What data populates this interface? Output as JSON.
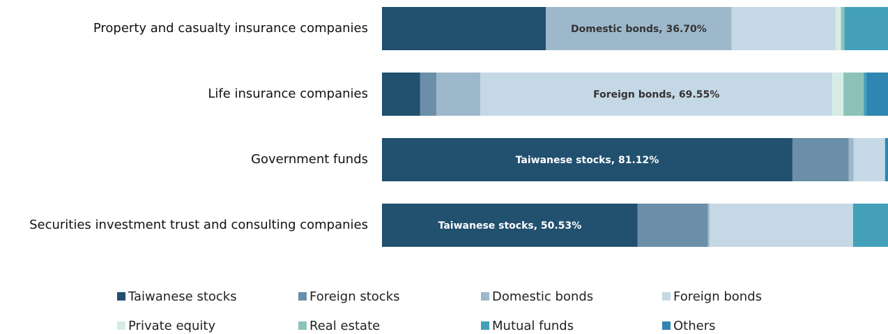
{
  "chart_data": {
    "type": "stacked-bar-horizontal",
    "categories": [
      "Property and casualty insurance companies",
      "Life insurance companies",
      "Government funds",
      "Securities investment trust and consulting companies"
    ],
    "xlim": [
      0,
      100
    ],
    "legend": "bottom",
    "series": [
      {
        "name": "Taiwanese stocks",
        "color": "#22506f",
        "values": [
          32.4,
          7.55,
          81.12,
          50.53
        ],
        "value_labels": [
          null,
          null,
          "Taiwanese stocks, 81.12%",
          "Taiwanese stocks, 50.53%"
        ]
      },
      {
        "name": "Foreign stocks",
        "color": "#6b8fa8",
        "values": [
          0,
          3.2,
          11.1,
          13.9
        ]
      },
      {
        "name": "Domestic bonds",
        "color": "#9db8cb",
        "values": [
          36.7,
          8.7,
          1.0,
          0.3
        ],
        "value_labels": [
          "Domestic bonds, 36.70%",
          null,
          null,
          null
        ]
      },
      {
        "name": "Foreign bonds",
        "color": "#c5d8e5",
        "values": [
          20.6,
          69.55,
          6.2,
          28.37
        ],
        "value_labels": [
          null,
          "Foreign bonds, 69.55%",
          null,
          null
        ]
      },
      {
        "name": "Private equity",
        "color": "#d6ede6",
        "values": [
          1.0,
          2.2,
          0,
          0
        ]
      },
      {
        "name": "Real estate",
        "color": "#8cc3b8",
        "values": [
          0.7,
          4.0,
          0,
          0
        ]
      },
      {
        "name": "Mutual funds",
        "color": "#43a0b8",
        "values": [
          8.6,
          0.5,
          0,
          6.9
        ]
      },
      {
        "name": "Others",
        "color": "#2f86b0",
        "values": [
          0,
          4.3,
          0.58,
          0
        ]
      }
    ]
  }
}
